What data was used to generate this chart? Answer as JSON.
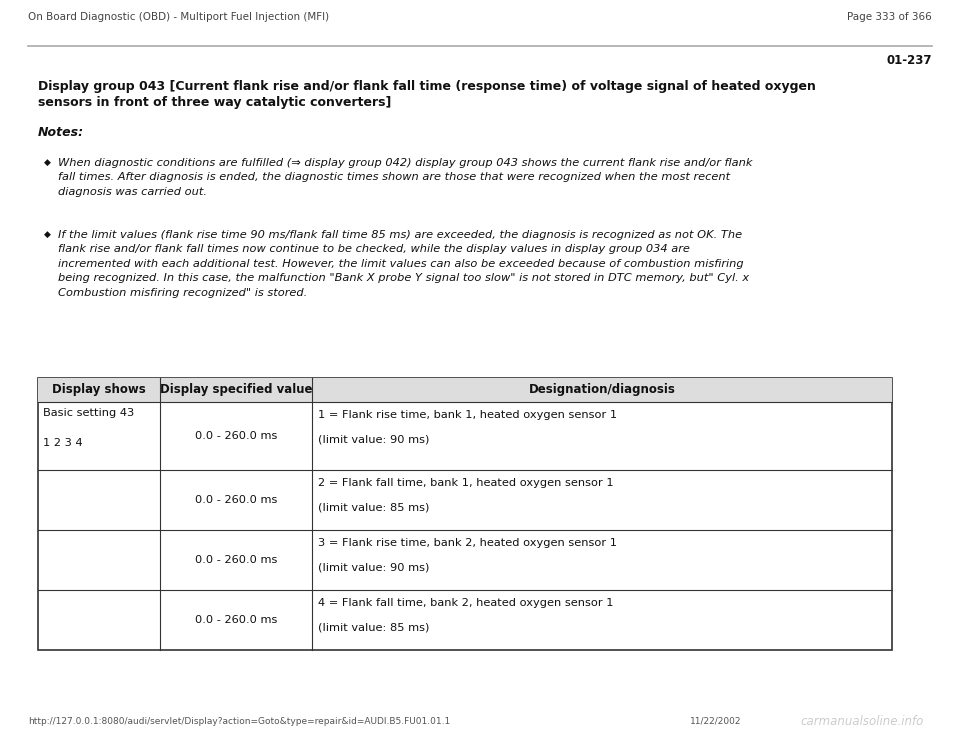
{
  "page_bg": "#ffffff",
  "header_left": "On Board Diagnostic (OBD) - Multiport Fuel Injection (MFI)",
  "header_right": "Page 333 of 366",
  "section_id": "01-237",
  "title_line1": "Display group 043 [Current flank rise and/or flank fall time (response time) of voltage signal of heated oxygen",
  "title_line2": "sensors in front of three way catalytic converters]",
  "notes_label": "Notes:",
  "bullet1": "When diagnostic conditions are fulfilled (⇒ display group 042) display group 043 shows the current flank rise and/or flank\nfall times. After diagnosis is ended, the diagnostic times shown are those that were recognized when the most recent\ndiagnosis was carried out.",
  "bullet2": "If the limit values (flank rise time 90 ms/flank fall time 85 ms) are exceeded, the diagnosis is recognized as not OK. The\nflank rise and/or flank fall times now continue to be checked, while the display values in display group 034 are\nincremented with each additional test. However, the limit values can also be exceeded because of combustion misfiring\nbeing recognized. In this case, the malfunction \"Bank X probe Y signal too slow\" is not stored in DTC memory, but\" Cyl. x\nCombustion misfiring recognized\" is stored.",
  "table_headers": [
    "Display shows",
    "Display specified value",
    "Designation/diagnosis"
  ],
  "table_col2": [
    "0.0 - 260.0 ms",
    "0.0 - 260.0 ms",
    "0.0 - 260.0 ms",
    "0.0 - 260.0 ms"
  ],
  "table_col3_line1": [
    "1 = Flank rise time, bank 1, heated oxygen sensor 1",
    "2 = Flank fall time, bank 1, heated oxygen sensor 1",
    "3 = Flank rise time, bank 2, heated oxygen sensor 1",
    "4 = Flank fall time, bank 2, heated oxygen sensor 1"
  ],
  "table_col3_line2": [
    "(limit value: 90 ms)",
    "(limit value: 85 ms)",
    "(limit value: 90 ms)",
    "(limit value: 85 ms)"
  ],
  "footer_url": "http://127.0.0.1:8080/audi/servlet/Display?action=Goto&type=repair&id=AUDI.B5.FU01.01.1",
  "footer_date": "11/22/2002",
  "footer_watermark": "carmanualsoline.info"
}
